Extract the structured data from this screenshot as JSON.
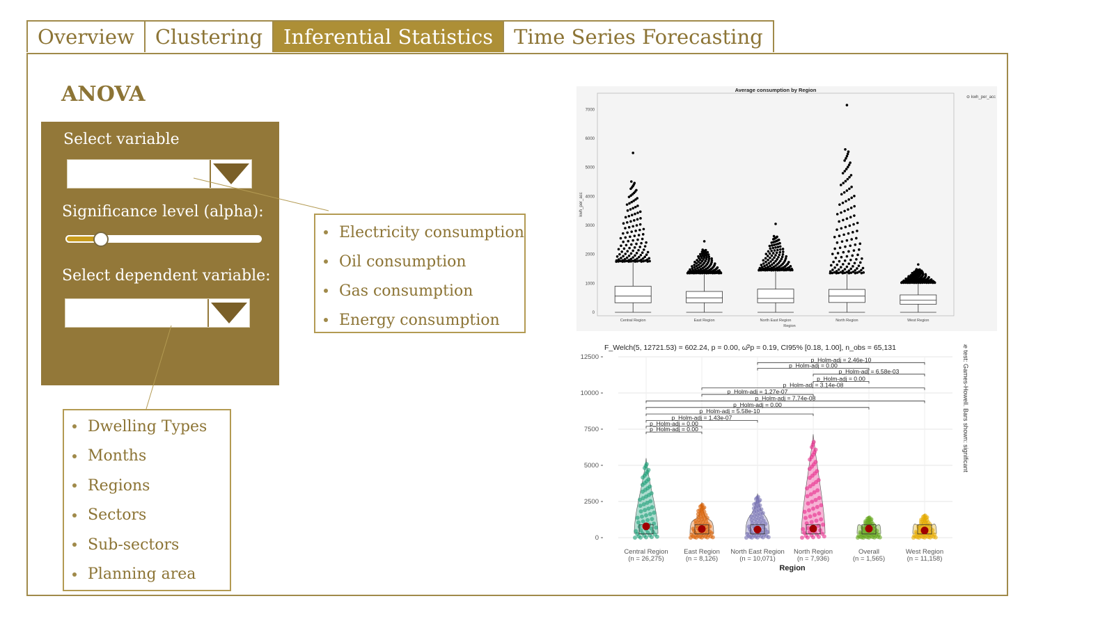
{
  "tabs": [
    {
      "label": "Overview",
      "active": false
    },
    {
      "label": "Clustering",
      "active": false
    },
    {
      "label": "Inferential Statistics",
      "active": true
    },
    {
      "label": "Time Series Forecasting",
      "active": false
    }
  ],
  "section_title": "ANOVA",
  "controls": {
    "select_variable_label": "Select variable",
    "significance_label": "Significance level (alpha):",
    "alpha_fraction": 0.18,
    "dependent_variable_label": "Select dependent variable:"
  },
  "variable_options": [
    "Electricity consumption",
    "Oil consumption",
    "Gas consumption",
    "Energy consumption"
  ],
  "dependent_options": [
    "Dwelling Types",
    "Months",
    "Regions",
    "Sectors",
    "Sub-sectors",
    "Planning area"
  ],
  "colors": {
    "accent": "#937839",
    "tab_active": "#ad8f36",
    "text": "#8c7435"
  },
  "chart_data": [
    {
      "type": "box",
      "title": "Average consumption by Region",
      "xlabel": "Region",
      "ylabel": "kwh_per_acc",
      "legend": "kwh_per_acc",
      "yticks": [
        "7000",
        "6000",
        "5000",
        "4000",
        "3000",
        "2000",
        "1000",
        "0"
      ],
      "ylim": [
        0,
        7200
      ],
      "categories": [
        "Central Region",
        "East Region",
        "North East Region",
        "North Region",
        "West Region"
      ],
      "boxes": [
        {
          "q1": 330,
          "median": 560,
          "q3": 900,
          "whisker_high": 1750,
          "outlier_max": 5500
        },
        {
          "q1": 330,
          "median": 500,
          "q3": 720,
          "whisker_high": 1350,
          "outlier_max": 2450
        },
        {
          "q1": 330,
          "median": 480,
          "q3": 800,
          "whisker_high": 1450,
          "outlier_max": 3050
        },
        {
          "q1": 340,
          "median": 560,
          "q3": 790,
          "whisker_high": 1350,
          "outlier_max": 7150
        },
        {
          "q1": 280,
          "median": 420,
          "q3": 600,
          "whisker_high": 1020,
          "outlier_max": 1650
        }
      ]
    },
    {
      "type": "violin",
      "title": "F_Welch(5, 12721.53) = 602.24, p = 0.00, ω̂²p = 0.19, CI95% [0.18, 1.00], n_obs = 65,131",
      "xlabel": "Region",
      "ylabel": "kwh_per_acc",
      "side_caption": "Pairwise test: Games-Howell. Bars shown: significant",
      "yticks": [
        "12500",
        "10000",
        "7500",
        "5000",
        "2500",
        "0"
      ],
      "ylim": [
        0,
        12500
      ],
      "categories": [
        "Central Region",
        "East Region",
        "North East Region",
        "North Region",
        "Overall",
        "West Region"
      ],
      "counts": [
        "(n = 26,275)",
        "(n = 8,126)",
        "(n = 10,071)",
        "(n = 7,936)",
        "(n = 1,565)",
        "(n = 11,158)"
      ],
      "means": [
        780,
        600,
        560,
        620,
        620,
        500
      ],
      "maxima": [
        5500,
        2450,
        3050,
        7150,
        1500,
        1650
      ],
      "series_colors": [
        "#1b9e77",
        "#d95f02",
        "#7570b3",
        "#e7298a",
        "#66a61e",
        "#e6ab02"
      ],
      "pairwise_labels": [
        "p_Holm-adj = 2.46e-10",
        "p_Holm-adj = 0.00",
        "p_Holm-adj = 6.58e-03",
        "p_Holm-adj = 0.00",
        "p_Holm-adj = 3.14e-08",
        "p_Holm-adj = 1.27e-07",
        "p_Holm-adj = 7.74e-08",
        "p_Holm-adj = 0.00",
        "p_Holm-adj = 5.58e-10",
        "p_Holm-adj = 1.43e-07",
        "p_Holm-adj = 0.00",
        "p_Holm-adj = 0.00"
      ]
    }
  ]
}
